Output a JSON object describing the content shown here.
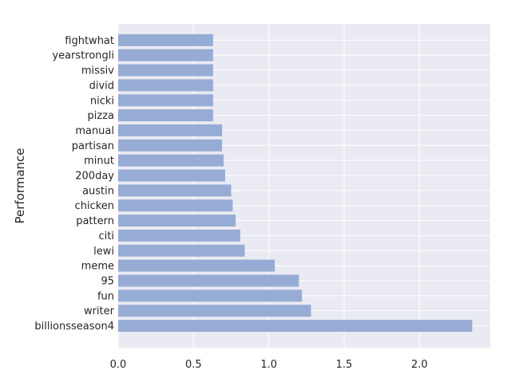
{
  "chart_data": {
    "type": "bar",
    "orientation": "horizontal",
    "categories": [
      "billionsseason4",
      "writer",
      "fun",
      "95",
      "meme",
      "lewi",
      "citi",
      "pattern",
      "chicken",
      "austin",
      "200day",
      "minut",
      "partisan",
      "manual",
      "pizza",
      "nicki",
      "divid",
      "missiv",
      "yearstrongli",
      "fightwhat"
    ],
    "values": [
      2.35,
      1.28,
      1.22,
      1.2,
      1.04,
      0.84,
      0.81,
      0.78,
      0.76,
      0.75,
      0.71,
      0.7,
      0.69,
      0.69,
      0.63,
      0.63,
      0.63,
      0.63,
      0.63,
      0.63
    ],
    "title": "",
    "xlabel": "",
    "ylabel": "Performance",
    "xlim": [
      0,
      2.47
    ],
    "xticks": [
      "0.0",
      "0.5",
      "1.0",
      "1.5",
      "2.0"
    ],
    "grid": true,
    "colors": {
      "background": "#eaeaf2",
      "bar": "#97acd5",
      "grid": "#ffffff"
    }
  }
}
